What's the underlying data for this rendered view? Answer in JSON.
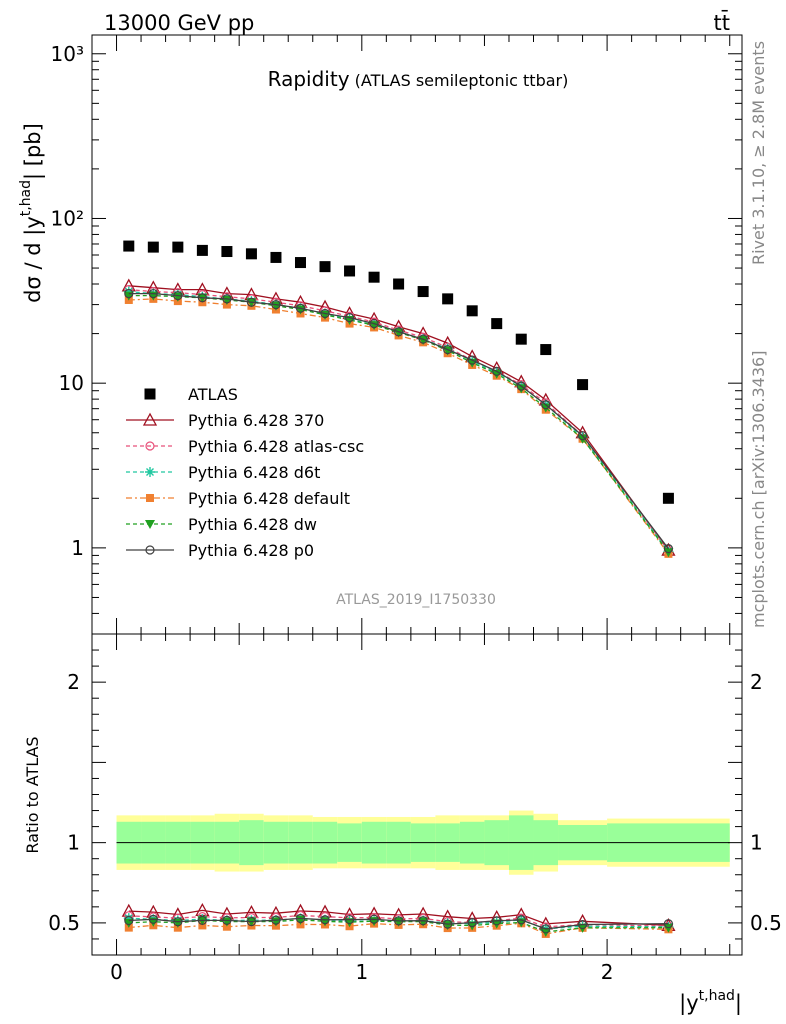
{
  "header": {
    "energy_label": "13000 GeV pp",
    "process_label": "tt̄"
  },
  "plot": {
    "title_main": "Rapidity",
    "title_sub": "(ATLAS semileptonic ttbar)",
    "y_label": "dσ / d |y",
    "y_label_sup": "t,had",
    "y_label_tail": "| [pb]",
    "x_label": "|y",
    "x_label_sup": "t,had",
    "x_label_tail": "|",
    "ratio_label": "Ratio to ATLAS",
    "analysis_id": "ATLAS_2019_I1750330",
    "rivet_label": "Rivet 3.1.10, ≥ 2.8M events",
    "mcplots_label": "mcplots.cern.ch [arXiv:1306.3436]"
  },
  "chart_data": {
    "type": "scatter",
    "x_range": [
      -0.1,
      2.55
    ],
    "main_ylim": [
      0.3,
      1300
    ],
    "main_y_log": true,
    "ratio_ylim": [
      0.3,
      2.3
    ],
    "main_y_ticks": [
      "1",
      "10",
      "10²",
      "10³"
    ],
    "x_ticks": [
      "0",
      "1",
      "2"
    ],
    "ratio_y_ticks": [
      "0.5",
      "1",
      "2"
    ],
    "legend_position": "middle-left",
    "bin_edges": [
      0.0,
      0.1,
      0.2,
      0.3,
      0.4,
      0.5,
      0.6,
      0.7,
      0.8,
      0.9,
      1.0,
      1.1,
      1.2,
      1.3,
      1.4,
      1.5,
      1.6,
      1.7,
      1.8,
      2.0,
      2.5
    ],
    "x": [
      0.05,
      0.15,
      0.25,
      0.35,
      0.45,
      0.55,
      0.65,
      0.75,
      0.85,
      0.95,
      1.05,
      1.15,
      1.25,
      1.35,
      1.45,
      1.55,
      1.65,
      1.75,
      1.9,
      2.25
    ],
    "data_series": {
      "name": "ATLAS",
      "values": [
        68,
        67,
        67,
        64,
        63,
        61,
        58,
        54,
        51,
        48,
        44,
        40,
        36,
        32.5,
        27.5,
        23,
        18.5,
        16,
        9.8,
        2.0
      ],
      "band_inner": [
        0.13,
        0.13,
        0.13,
        0.13,
        0.13,
        0.14,
        0.13,
        0.13,
        0.13,
        0.12,
        0.13,
        0.13,
        0.12,
        0.12,
        0.13,
        0.14,
        0.17,
        0.14,
        0.11,
        0.12
      ],
      "band_outer": [
        0.17,
        0.17,
        0.17,
        0.17,
        0.18,
        0.18,
        0.17,
        0.17,
        0.16,
        0.16,
        0.16,
        0.16,
        0.16,
        0.17,
        0.17,
        0.17,
        0.2,
        0.18,
        0.14,
        0.15
      ]
    },
    "series": [
      {
        "name": "Pythia 6.428 370",
        "color": "#a01020",
        "marker": "triangle-open",
        "dash": "",
        "values": [
          39,
          38,
          37,
          37,
          35,
          34.5,
          32.5,
          31,
          29,
          26.5,
          24.5,
          22,
          20,
          17.5,
          14.5,
          12.3,
          10.2,
          7.9,
          5.0,
          0.97
        ]
      },
      {
        "name": "Pythia 6.428 atlas-csc",
        "color": "#e8507a",
        "marker": "circle-open",
        "dash": "4,3",
        "values": [
          37,
          36,
          35.5,
          34.5,
          33.5,
          32.5,
          31,
          29.5,
          27.5,
          25.5,
          23.5,
          21,
          19,
          16.5,
          13.8,
          11.8,
          9.8,
          7.6,
          4.8,
          0.96
        ]
      },
      {
        "name": "Pythia 6.428 d6t",
        "color": "#20c8a0",
        "marker": "asterisk",
        "dash": "4,3",
        "values": [
          36,
          35,
          34.5,
          33.5,
          32.5,
          31.5,
          30,
          28.5,
          26.5,
          24.5,
          22.5,
          20.5,
          18.5,
          16.2,
          13.6,
          11.6,
          9.6,
          7.4,
          4.7,
          0.95
        ]
      },
      {
        "name": "Pythia 6.428 default",
        "color": "#f08030",
        "marker": "square",
        "dash": "6,3,2,3",
        "values": [
          32,
          32.5,
          31.5,
          31,
          30,
          29.5,
          28,
          26.5,
          25,
          23,
          21.8,
          19.5,
          17.7,
          15.2,
          12.9,
          11.1,
          9.2,
          6.9,
          4.6,
          0.92
        ]
      },
      {
        "name": "Pythia 6.428 dw",
        "color": "#20a020",
        "marker": "triangle-down",
        "dash": "4,3",
        "values": [
          34,
          34,
          33.5,
          33,
          32,
          31,
          29.5,
          28,
          26,
          24.2,
          22.5,
          20.3,
          18.3,
          15.8,
          13.3,
          11.4,
          9.3,
          7.1,
          4.6,
          0.94
        ]
      },
      {
        "name": "Pythia 6.428 p0",
        "color": "#404040",
        "marker": "circle-open",
        "dash": "",
        "values": [
          35,
          35,
          34,
          33,
          32.5,
          31,
          30,
          28.5,
          26.5,
          25,
          23,
          20.5,
          18.5,
          16,
          13.8,
          11.8,
          9.6,
          7.4,
          4.8,
          0.99
        ]
      }
    ]
  }
}
